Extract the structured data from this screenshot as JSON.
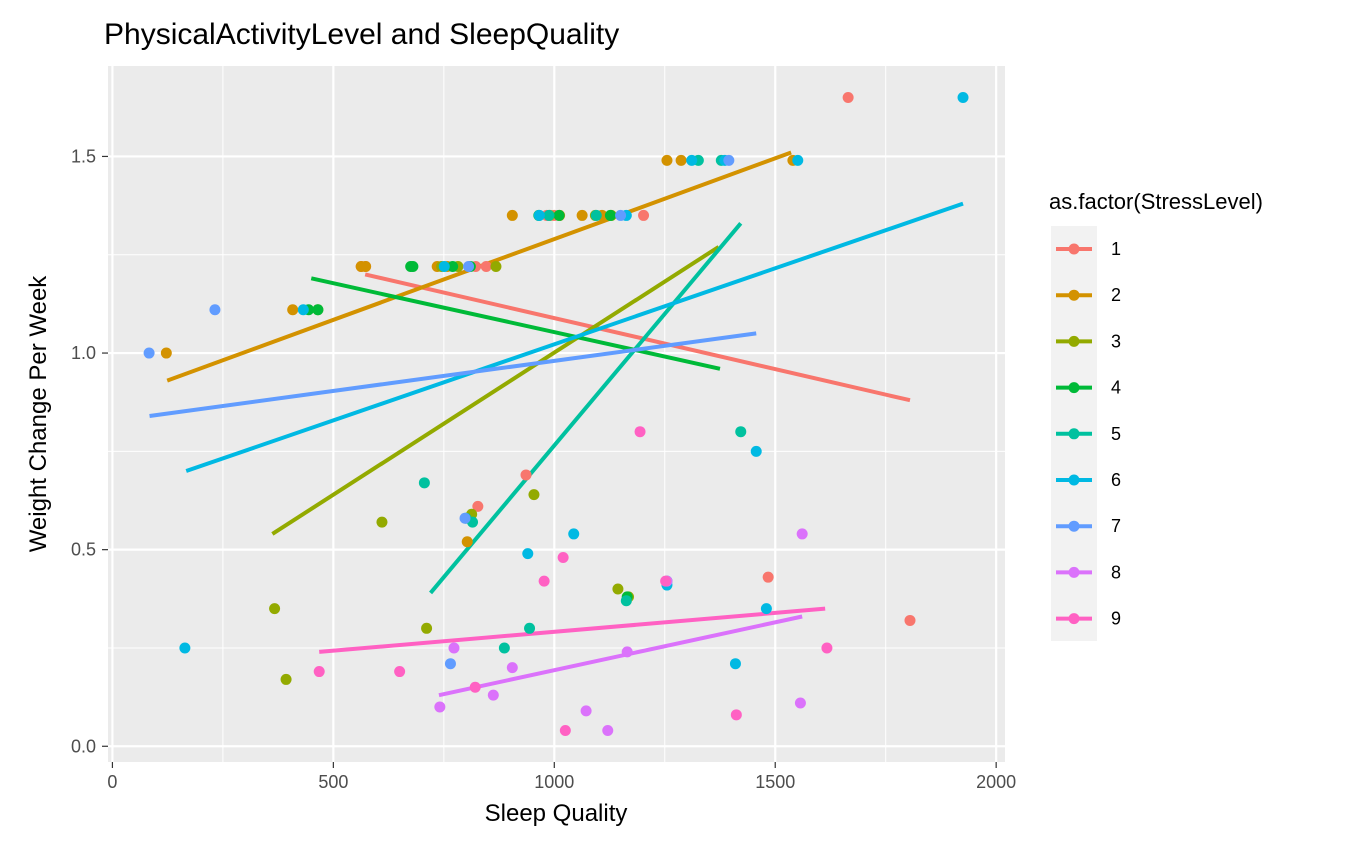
{
  "chart_data": {
    "type": "scatter",
    "title": "PhysicalActivityLevel and SleepQuality",
    "xlabel": "Sleep Quality",
    "ylabel": "Weight Change Per Week",
    "xlim": [
      -10,
      2020
    ],
    "ylim": [
      -0.04,
      1.73
    ],
    "x_ticks": [
      0,
      500,
      1000,
      1500,
      2000
    ],
    "x_tick_labels": [
      "0",
      "500",
      "1000",
      "1500",
      "2000"
    ],
    "y_ticks": [
      0.0,
      0.5,
      1.0,
      1.5
    ],
    "y_tick_labels": [
      "0.0",
      "0.5",
      "1.0",
      "1.5"
    ],
    "grid": true,
    "legend_title": "as.factor(StressLevel)",
    "legend_position": "right",
    "series": [
      {
        "name": "1",
        "color": "#F8766D",
        "points": [
          [
            563,
            1.22
          ],
          [
            573,
            1.22
          ],
          [
            822,
            1.22
          ],
          [
            846,
            1.22
          ],
          [
            983,
            1.35
          ],
          [
            1000,
            1.35
          ],
          [
            1202,
            1.35
          ],
          [
            936,
            0.69
          ],
          [
            827,
            0.61
          ],
          [
            1484,
            0.43
          ],
          [
            1665,
            1.65
          ],
          [
            1805,
            0.32
          ]
        ],
        "trend": [
          [
            572,
            1.2
          ],
          [
            1805,
            0.88
          ]
        ]
      },
      {
        "name": "2",
        "color": "#D39200",
        "points": [
          [
            122,
            1.0
          ],
          [
            408,
            1.11
          ],
          [
            563,
            1.22
          ],
          [
            573,
            1.22
          ],
          [
            735,
            1.22
          ],
          [
            758,
            1.22
          ],
          [
            905,
            1.35
          ],
          [
            990,
            1.35
          ],
          [
            1012,
            1.35
          ],
          [
            1063,
            1.35
          ],
          [
            1108,
            1.35
          ],
          [
            1255,
            1.49
          ],
          [
            1287,
            1.49
          ],
          [
            1540,
            1.49
          ],
          [
            803,
            0.52
          ]
        ],
        "trend": [
          [
            124,
            0.93
          ],
          [
            1536,
            1.51
          ]
        ]
      },
      {
        "name": "3",
        "color": "#93AA00",
        "points": [
          [
            367,
            0.35
          ],
          [
            393,
            0.17
          ],
          [
            610,
            0.57
          ],
          [
            711,
            0.3
          ],
          [
            813,
            0.59
          ],
          [
            954,
            0.64
          ],
          [
            1144,
            0.4
          ],
          [
            1168,
            0.38
          ],
          [
            782,
            1.22
          ],
          [
            868,
            1.22
          ],
          [
            1093,
            1.35
          ],
          [
            1129,
            1.35
          ],
          [
            465,
            1.11
          ],
          [
            745,
            1.22
          ]
        ],
        "trend": [
          [
            362,
            0.54
          ],
          [
            1372,
            1.27
          ]
        ]
      },
      {
        "name": "4",
        "color": "#00BA38",
        "points": [
          [
            444,
            1.11
          ],
          [
            465,
            1.11
          ],
          [
            675,
            1.22
          ],
          [
            680,
            1.22
          ],
          [
            810,
            1.22
          ],
          [
            1011,
            1.35
          ],
          [
            1165,
            0.38
          ],
          [
            770,
            1.22
          ],
          [
            965,
            1.35
          ],
          [
            1127,
            1.35
          ]
        ],
        "trend": [
          [
            450,
            1.19
          ],
          [
            1375,
            0.96
          ]
        ]
      },
      {
        "name": "5",
        "color": "#00C19F",
        "points": [
          [
            706,
            0.67
          ],
          [
            800,
            0.58
          ],
          [
            815,
            0.57
          ],
          [
            887,
            0.25
          ],
          [
            944,
            0.3
          ],
          [
            1163,
            0.37
          ],
          [
            1255,
            0.42
          ],
          [
            1326,
            1.49
          ],
          [
            1422,
            0.8
          ],
          [
            1378,
            1.49
          ],
          [
            1095,
            1.35
          ],
          [
            988,
            1.35
          ]
        ],
        "trend": [
          [
            720,
            0.39
          ],
          [
            1422,
            1.33
          ]
        ]
      },
      {
        "name": "6",
        "color": "#00B9E3",
        "points": [
          [
            164,
            0.25
          ],
          [
            432,
            1.11
          ],
          [
            940,
            0.49
          ],
          [
            1044,
            0.54
          ],
          [
            1255,
            0.41
          ],
          [
            1410,
            0.21
          ],
          [
            1457,
            0.75
          ],
          [
            1480,
            0.35
          ],
          [
            1551,
            1.49
          ],
          [
            1925,
            1.65
          ],
          [
            966,
            1.35
          ],
          [
            1163,
            1.35
          ],
          [
            1311,
            1.49
          ],
          [
            1386,
            1.49
          ],
          [
            751,
            1.22
          ]
        ],
        "trend": [
          [
            167,
            0.7
          ],
          [
            1925,
            1.38
          ]
        ]
      },
      {
        "name": "7",
        "color": "#619CFF",
        "points": [
          [
            83,
            1.0
          ],
          [
            232,
            1.11
          ],
          [
            765,
            0.21
          ],
          [
            798,
            0.58
          ],
          [
            806,
            1.22
          ],
          [
            1150,
            1.35
          ],
          [
            1395,
            1.49
          ]
        ],
        "trend": [
          [
            84,
            0.84
          ],
          [
            1457,
            1.05
          ]
        ]
      },
      {
        "name": "8",
        "color": "#DB72FB",
        "points": [
          [
            741,
            0.1
          ],
          [
            773,
            0.25
          ],
          [
            862,
            0.13
          ],
          [
            905,
            0.2
          ],
          [
            1072,
            0.09
          ],
          [
            1121,
            0.04
          ],
          [
            1165,
            0.24
          ],
          [
            1557,
            0.11
          ],
          [
            1561,
            0.54
          ],
          [
            1255,
            0.42
          ]
        ],
        "trend": [
          [
            739,
            0.13
          ],
          [
            1561,
            0.33
          ]
        ]
      },
      {
        "name": "9",
        "color": "#FF61C3",
        "points": [
          [
            468,
            0.19
          ],
          [
            650,
            0.19
          ],
          [
            821,
            0.15
          ],
          [
            977,
            0.42
          ],
          [
            1020,
            0.48
          ],
          [
            1025,
            0.04
          ],
          [
            1194,
            0.8
          ],
          [
            1412,
            0.08
          ],
          [
            1617,
            0.25
          ],
          [
            1252,
            0.42
          ]
        ],
        "trend": [
          [
            468,
            0.24
          ],
          [
            1613,
            0.35
          ]
        ]
      }
    ]
  }
}
